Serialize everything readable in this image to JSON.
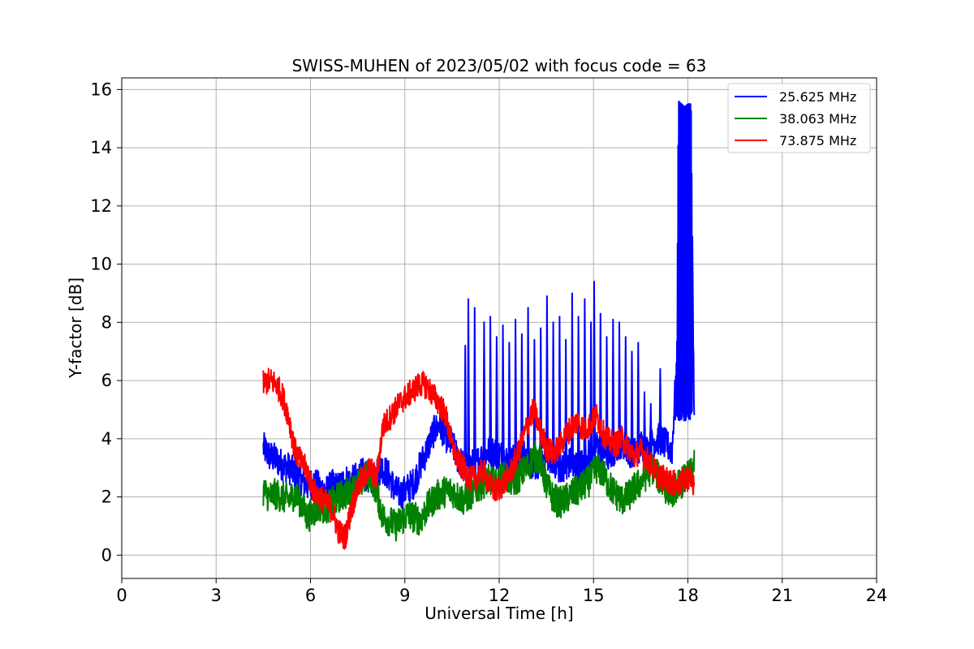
{
  "chart_data": {
    "type": "line",
    "title": "SWISS-MUHEN of 2023/05/02 with focus code = 63",
    "xlabel": "Universal Time [h]",
    "ylabel": "Y-factor [dB]",
    "xlim": [
      0,
      24
    ],
    "ylim": [
      -0.8,
      16.4
    ],
    "xticks": [
      0,
      3,
      6,
      9,
      12,
      15,
      18,
      21,
      24
    ],
    "yticks": [
      0,
      2,
      4,
      6,
      8,
      10,
      12,
      14,
      16
    ],
    "grid": true,
    "legend_position": "top-right",
    "series": [
      {
        "name": "25.625 MHz",
        "color": "#0000ff",
        "x": [
          4.5,
          4.7,
          4.9,
          5.1,
          5.3,
          5.5,
          5.7,
          5.9,
          6.1,
          6.3,
          6.5,
          6.7,
          6.9,
          7.1,
          7.3,
          7.5,
          7.7,
          7.9,
          8.1,
          8.3,
          8.5,
          8.7,
          8.9,
          9.1,
          9.3,
          9.5,
          9.7,
          9.9,
          10.1,
          10.3,
          10.5,
          10.7,
          10.9,
          11.1,
          11.3,
          11.5,
          11.7,
          11.9,
          12.1,
          12.3,
          12.5,
          12.7,
          12.9,
          13.1,
          13.3,
          13.5,
          13.7,
          13.9,
          14.1,
          14.3,
          14.5,
          14.7,
          14.9,
          15.1,
          15.3,
          15.5,
          15.7,
          15.9,
          16.1,
          16.3,
          16.5,
          16.7,
          16.9,
          17.1,
          17.3,
          17.5,
          17.65,
          17.7,
          17.8,
          17.9,
          18.0,
          18.1,
          18.2
        ],
        "y": [
          3.7,
          3.4,
          3.3,
          3.1,
          3.0,
          2.8,
          2.6,
          2.4,
          2.5,
          2.3,
          2.2,
          2.4,
          2.3,
          2.6,
          2.5,
          2.7,
          2.8,
          2.6,
          2.9,
          3.0,
          2.7,
          2.2,
          2.1,
          2.3,
          2.5,
          3.1,
          3.6,
          4.2,
          4.5,
          4.1,
          3.8,
          3.3,
          3.0,
          3.1,
          3.2,
          3.4,
          3.6,
          3.5,
          3.4,
          3.2,
          3.3,
          3.5,
          3.3,
          3.1,
          3.2,
          3.4,
          3.3,
          3.0,
          3.1,
          3.2,
          3.0,
          3.3,
          3.5,
          3.8,
          3.6,
          3.4,
          3.7,
          3.9,
          3.6,
          3.5,
          3.8,
          3.6,
          3.9,
          4.0,
          3.8,
          3.6,
          7.0,
          15.6,
          15.5,
          15.4,
          15.5,
          15.5,
          4.5
        ],
        "spikes": [
          [
            10.2,
            5.0
          ],
          [
            10.9,
            7.2
          ],
          [
            11.0,
            8.8
          ],
          [
            11.2,
            8.5
          ],
          [
            11.5,
            8.0
          ],
          [
            11.7,
            8.2
          ],
          [
            11.9,
            7.5
          ],
          [
            12.1,
            7.9
          ],
          [
            12.3,
            7.3
          ],
          [
            12.5,
            8.1
          ],
          [
            12.7,
            7.6
          ],
          [
            12.9,
            8.5
          ],
          [
            13.1,
            7.4
          ],
          [
            13.3,
            7.8
          ],
          [
            13.5,
            8.9
          ],
          [
            13.7,
            8.0
          ],
          [
            13.9,
            8.2
          ],
          [
            14.1,
            7.4
          ],
          [
            14.3,
            9.0
          ],
          [
            14.5,
            8.2
          ],
          [
            14.7,
            8.8
          ],
          [
            14.9,
            8.0
          ],
          [
            15.0,
            9.4
          ],
          [
            15.2,
            8.3
          ],
          [
            15.4,
            7.5
          ],
          [
            15.6,
            8.1
          ],
          [
            15.8,
            8.0
          ],
          [
            16.0,
            7.5
          ],
          [
            16.2,
            7.0
          ],
          [
            16.4,
            7.3
          ],
          [
            16.6,
            5.6
          ],
          [
            16.8,
            5.2
          ],
          [
            17.1,
            6.4
          ]
        ]
      },
      {
        "name": "38.063 MHz",
        "color": "#008000",
        "x": [
          4.5,
          4.7,
          4.9,
          5.1,
          5.3,
          5.5,
          5.7,
          5.9,
          6.1,
          6.3,
          6.5,
          6.7,
          6.9,
          7.1,
          7.3,
          7.5,
          7.7,
          7.9,
          8.1,
          8.3,
          8.5,
          8.7,
          8.9,
          9.1,
          9.3,
          9.5,
          9.7,
          9.9,
          10.1,
          10.3,
          10.5,
          10.7,
          10.9,
          11.1,
          11.3,
          11.5,
          11.7,
          11.9,
          12.1,
          12.3,
          12.5,
          12.7,
          12.9,
          13.1,
          13.3,
          13.5,
          13.7,
          13.9,
          14.1,
          14.3,
          14.5,
          14.7,
          14.9,
          15.1,
          15.3,
          15.5,
          15.7,
          15.9,
          16.1,
          16.3,
          16.5,
          16.7,
          16.9,
          17.1,
          17.3,
          17.5,
          17.7,
          17.9,
          18.1,
          18.2
        ],
        "y": [
          2.2,
          2.0,
          2.1,
          2.0,
          1.9,
          2.1,
          1.8,
          1.3,
          1.5,
          1.7,
          1.6,
          1.8,
          2.0,
          2.1,
          2.2,
          2.4,
          2.6,
          2.8,
          2.2,
          1.3,
          1.2,
          1.0,
          1.2,
          1.4,
          1.3,
          1.2,
          1.6,
          1.9,
          2.1,
          2.2,
          2.2,
          2.0,
          1.9,
          2.1,
          2.3,
          2.5,
          2.6,
          2.4,
          2.7,
          2.6,
          2.5,
          2.8,
          3.0,
          3.4,
          3.3,
          2.4,
          2.0,
          1.8,
          1.9,
          2.1,
          2.2,
          2.4,
          2.6,
          3.0,
          2.8,
          2.4,
          2.1,
          1.9,
          2.0,
          2.3,
          2.5,
          2.8,
          3.0,
          2.6,
          2.3,
          2.2,
          2.4,
          2.6,
          2.8,
          3.2
        ]
      },
      {
        "name": "73.875 MHz",
        "color": "#ff0000",
        "x": [
          4.5,
          4.7,
          4.9,
          5.1,
          5.3,
          5.5,
          5.7,
          5.9,
          6.1,
          6.3,
          6.5,
          6.7,
          6.9,
          7.1,
          7.3,
          7.5,
          7.7,
          7.9,
          8.1,
          8.3,
          8.5,
          8.7,
          8.9,
          9.1,
          9.3,
          9.5,
          9.7,
          9.9,
          10.1,
          10.3,
          10.5,
          10.7,
          10.9,
          11.1,
          11.3,
          11.5,
          11.7,
          11.9,
          12.1,
          12.3,
          12.5,
          12.7,
          12.9,
          13.1,
          13.3,
          13.5,
          13.7,
          13.9,
          14.1,
          14.3,
          14.5,
          14.7,
          14.9,
          15.1,
          15.3,
          15.5,
          15.7,
          15.9,
          16.1,
          16.3,
          16.5,
          16.7,
          16.9,
          17.1,
          17.3,
          17.5,
          17.7,
          17.9,
          18.1,
          18.2
        ],
        "y": [
          5.9,
          6.0,
          5.9,
          5.5,
          4.8,
          3.6,
          3.2,
          2.9,
          2.2,
          2.0,
          1.8,
          1.5,
          0.8,
          0.6,
          1.6,
          2.3,
          2.7,
          3.0,
          2.6,
          4.4,
          4.7,
          5.0,
          5.3,
          5.5,
          5.7,
          5.9,
          5.8,
          5.5,
          5.2,
          4.8,
          3.8,
          3.2,
          2.9,
          2.6,
          2.7,
          2.9,
          2.4,
          2.2,
          2.4,
          2.7,
          3.2,
          3.8,
          4.5,
          5.0,
          4.3,
          3.7,
          3.5,
          3.7,
          4.1,
          4.4,
          4.6,
          4.3,
          4.5,
          4.8,
          4.2,
          3.9,
          3.8,
          4.0,
          3.7,
          3.4,
          3.6,
          3.3,
          3.0,
          2.7,
          2.6,
          2.5,
          2.4,
          2.6,
          2.7,
          2.3
        ]
      }
    ]
  }
}
